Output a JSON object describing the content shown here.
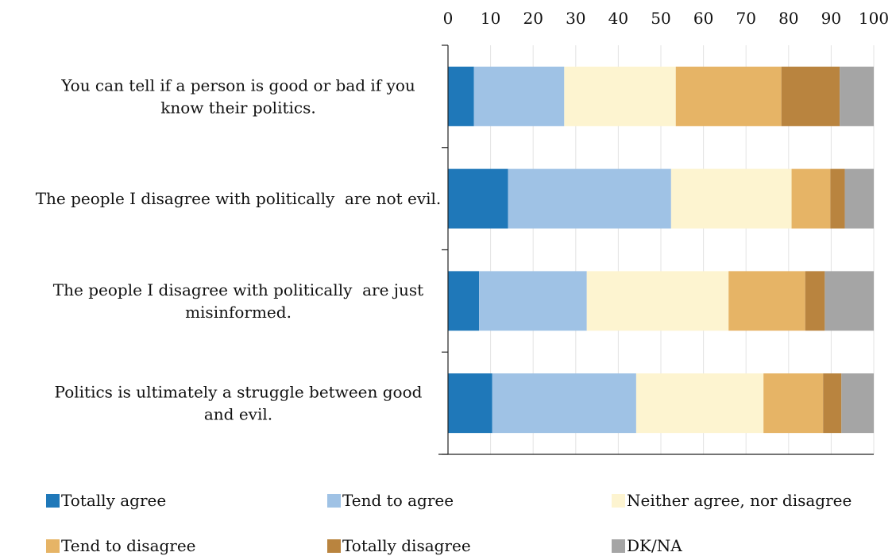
{
  "chart_data": {
    "type": "bar",
    "orientation": "horizontal",
    "stacked": true,
    "xlim": [
      0,
      100
    ],
    "x_ticks": [
      "0",
      "10",
      "20",
      "30",
      "40",
      "50",
      "60",
      "70",
      "80",
      "90",
      "100"
    ],
    "x_axis_position": "top",
    "grid": true,
    "legend_position": "bottom",
    "categories": [
      [
        "You can tell if a person is good or bad if you",
        "know their politics."
      ],
      [
        "The people I disagree with politically  are not evil."
      ],
      [
        "The people I disagree with politically  are just",
        "misinformed."
      ],
      [
        "Politics is ultimately a struggle between good",
        "and evil."
      ]
    ],
    "series": [
      {
        "name": "Totally agree",
        "color": "#1f78b9",
        "values": [
          6.1,
          14.1,
          7.3,
          10.4
        ]
      },
      {
        "name": "Tend to agree",
        "color": "#9fc2e5",
        "values": [
          21.2,
          38.3,
          25.3,
          33.8
        ]
      },
      {
        "name": "Neither agree, nor disagree",
        "color": "#fdf4d0",
        "values": [
          26.2,
          28.3,
          33.3,
          29.9
        ]
      },
      {
        "name": "Tend to disagree",
        "color": "#e6b466",
        "values": [
          24.8,
          9.1,
          18.0,
          14.0
        ]
      },
      {
        "name": "Totally disagree",
        "color": "#b9843f",
        "values": [
          13.7,
          3.4,
          4.6,
          4.3
        ]
      },
      {
        "name": "DK/NA",
        "color": "#a5a5a5",
        "values": [
          8.0,
          6.8,
          11.5,
          7.6
        ]
      }
    ]
  }
}
